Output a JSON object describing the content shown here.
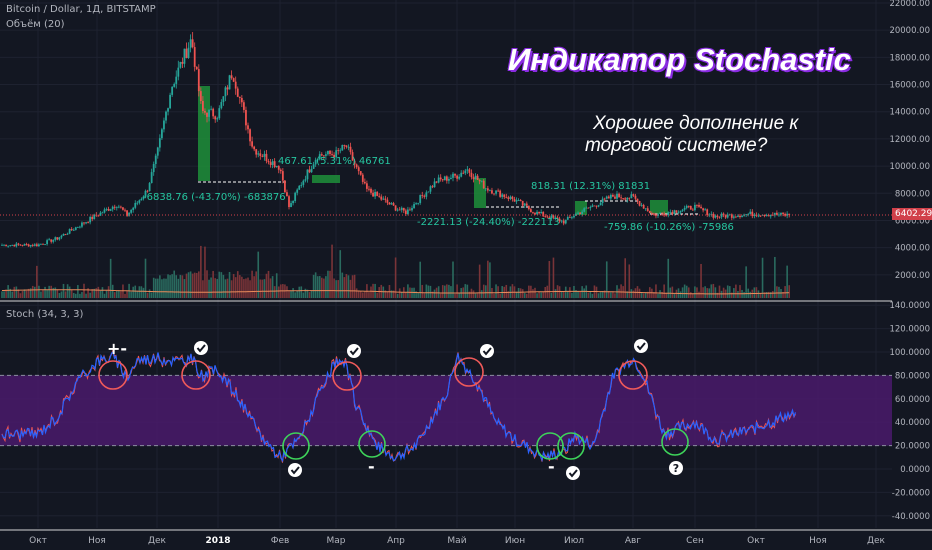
{
  "header": {
    "symbol": "Bitcoin / Dollar, 1Д, BITSTAMP",
    "volume_label": "Объём (20)",
    "stoch_label": "Stoch (34, 3, 3)"
  },
  "overlay": {
    "title": "Индикатор Stochastic",
    "subtitle_line1": "Хорошее дополнение к",
    "subtitle_line2": "торговой системе?"
  },
  "annotations": [
    "-6838.76 (-43.70%) -683876",
    "467.61 (5.31%) 46761",
    "-2221.13 (-24.40%) -222113",
    "818.31 (12.31%) 81831",
    "-759.86 (-10.26%) -75986"
  ],
  "current_price_label": "6402.29",
  "signal_marks": {
    "plus_minus": "+-",
    "minus": "-",
    "question": "?"
  },
  "colors": {
    "background": "#131722",
    "up": "#26a69a",
    "down": "#ef5350",
    "stoch_k": "#2962ff",
    "stoch_d": "#ef5350",
    "band": "#4a1a6b",
    "overbought_circle": "#f05a5a",
    "oversold_circle": "#3ed35a",
    "price_line": "#d1404a"
  },
  "chart_data": [
    {
      "type": "candlestick",
      "title": "Bitcoin / Dollar, 1Д, BITSTAMP",
      "x_ticks": [
        "Окт",
        "Ноя",
        "Дек",
        "2018",
        "Фев",
        "Мар",
        "Апр",
        "Май",
        "Июн",
        "Июл",
        "Авг",
        "Сен",
        "Окт",
        "Ноя",
        "Дек"
      ],
      "y_ticks": [
        2000,
        4000,
        6000,
        8000,
        10000,
        12000,
        14000,
        16000,
        18000,
        20000,
        22000
      ],
      "y_tick_labels": [
        "2000.00",
        "4000.00",
        "6000.00",
        "8000.00",
        "10000.00",
        "12000.00",
        "14000.00",
        "16000.00",
        "18000.00",
        "20000.00",
        "22000.00"
      ],
      "ylim": [
        0,
        22500
      ],
      "last_price": 6402.29,
      "close_keypoints": [
        [
          "Окт",
          4200
        ],
        [
          "Окт+10",
          4700
        ],
        [
          "Ноя",
          6400
        ],
        [
          "Ноя+10",
          7200
        ],
        [
          "Ноя+15",
          6400
        ],
        [
          "Ноя+25",
          8200
        ],
        [
          "Дек",
          10800
        ],
        [
          "Дек+7",
          15800
        ],
        [
          "Дек+17",
          19400
        ],
        [
          "Дек+22",
          14000
        ],
        [
          "2018",
          13800
        ],
        [
          "2018+7",
          17000
        ],
        [
          "2018+17",
          11300
        ],
        [
          "Фев",
          9900
        ],
        [
          "Фев+5",
          6900
        ],
        [
          "Фев+10",
          8400
        ],
        [
          "Фев+20",
          10800
        ],
        [
          "Мар",
          10900
        ],
        [
          "Мар+5",
          11500
        ],
        [
          "Мар+15",
          8300
        ],
        [
          "Апр",
          6900
        ],
        [
          "Апр+5",
          6600
        ],
        [
          "Апр+20",
          8900
        ],
        [
          "Май",
          9300
        ],
        [
          "Май+5",
          9800
        ],
        [
          "Май+15",
          8400
        ],
        [
          "Июн",
          7500
        ],
        [
          "Июн+10",
          6600
        ],
        [
          "Июн+25",
          5900
        ],
        [
          "Июл",
          6400
        ],
        [
          "Июл+20",
          7800
        ],
        [
          "Авг",
          7700
        ],
        [
          "Авг+10",
          6400
        ],
        [
          "Сен",
          7000
        ],
        [
          "Сен+10",
          6300
        ],
        [
          "Окт",
          6500
        ],
        [
          "Окт+15",
          6400
        ]
      ],
      "volume_ylim": [
        0,
        16000
      ]
    },
    {
      "type": "line",
      "title": "Stoch (34, 3, 3)",
      "y_ticks": [
        -40,
        -20,
        0,
        20,
        40,
        60,
        80,
        100,
        120,
        140
      ],
      "y_tick_labels": [
        "-40.0000",
        "-20.0000",
        "0.0000",
        "20.0000",
        "40.0000",
        "60.0000",
        "80.0000",
        "100.0000",
        "120.0000",
        "140.0000"
      ],
      "ylim": [
        -47,
        143
      ],
      "bands": [
        20,
        80
      ],
      "series": [
        {
          "name": "",
          "values_by_month": [
            [
              "Окт",
              30
            ],
            [
              "Окт+10",
              45
            ],
            [
              "Окт+20",
              75
            ],
            [
              "Ноя",
              92
            ],
            [
              "Ноя+8",
              96
            ],
            [
              "Ноя+15",
              78
            ],
            [
              "Ноя+20",
              93
            ],
            [
              "Дек",
              95
            ],
            [
              "Дек+10",
              92
            ],
            [
              "Дек+17",
              94
            ],
            [
              "Дек+22",
              80
            ],
            [
              "2018",
              85
            ],
            [
              "2018+10",
              60
            ],
            [
              "2018+20",
              30
            ],
            [
              "Фев",
              10
            ],
            [
              "Фев+10",
              25
            ],
            [
              "Фев+20",
              60
            ],
            [
              "Мар",
              92
            ],
            [
              "Мар+5",
              88
            ],
            [
              "Мар+10",
              55
            ],
            [
              "Мар+20",
              20
            ],
            [
              "Апр",
              10
            ],
            [
              "Апр+10",
              20
            ],
            [
              "Апр+25",
              65
            ],
            [
              "Май",
              97
            ],
            [
              "Май+10",
              75
            ],
            [
              "Май+20",
              40
            ],
            [
              "Июн",
              25
            ],
            [
              "Июн+15",
              10
            ],
            [
              "Июн+25",
              15
            ],
            [
              "Июл",
              28
            ],
            [
              "Июл+10",
              20
            ],
            [
              "Июл+20",
              80
            ],
            [
              "Авг",
              95
            ],
            [
              "Авг+5",
              80
            ],
            [
              "Авг+15",
              30
            ],
            [
              "Сен",
              40
            ],
            [
              "Сен+10",
              25
            ],
            [
              "Окт",
              35
            ],
            [
              "Окт+15",
              46
            ]
          ]
        }
      ]
    }
  ]
}
